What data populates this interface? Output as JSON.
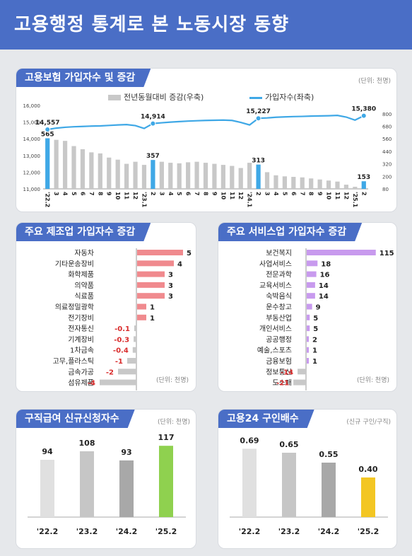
{
  "page": {
    "title": "고용행정 통계로 본 노동시장 동향"
  },
  "chart_data": [
    {
      "type": "bar+line",
      "title": "고용보험 가입자수 및 증감",
      "unit": "(단위: 천명)",
      "legend": {
        "bar": "전년동월대비 증감(우축)",
        "line": "가입자수(좌축)"
      },
      "categories": [
        "'22.2",
        "3",
        "4",
        "5",
        "6",
        "7",
        "8",
        "9",
        "10",
        "11",
        "12",
        "'23.1",
        "2",
        "3",
        "4",
        "5",
        "6",
        "7",
        "8",
        "9",
        "10",
        "11",
        "12",
        "'24.1",
        "2",
        "3",
        "4",
        "5",
        "6",
        "7",
        "8",
        "9",
        "10",
        "11",
        "12",
        "'25.1",
        "2"
      ],
      "left_axis": {
        "ylim": [
          11000,
          16000
        ],
        "ticks": [
          "11,000",
          "12,000",
          "13,000",
          "14,000",
          "15,000",
          "16,000"
        ]
      },
      "right_axis": {
        "ylim": [
          80,
          880
        ],
        "ticks": [
          "80",
          "200",
          "320",
          "440",
          "560",
          "680",
          "800"
        ]
      },
      "bar_values": [
        565,
        550,
        540,
        490,
        460,
        430,
        420,
        380,
        360,
        320,
        340,
        310,
        357,
        340,
        330,
        325,
        335,
        340,
        330,
        320,
        310,
        300,
        280,
        330,
        313,
        240,
        210,
        200,
        195,
        190,
        180,
        170,
        160,
        150,
        120,
        100,
        153
      ],
      "highlight_indices": [
        0,
        12,
        24,
        36
      ],
      "bar_labels": [
        {
          "i": 0,
          "text": "565"
        },
        {
          "i": 12,
          "text": "357"
        },
        {
          "i": 24,
          "text": "313"
        },
        {
          "i": 36,
          "text": "153"
        }
      ],
      "line_values": [
        14557,
        14640,
        14690,
        14720,
        14740,
        14760,
        14770,
        14800,
        14830,
        14850,
        14790,
        14620,
        14914,
        14960,
        15000,
        15030,
        15060,
        15080,
        15100,
        15110,
        15120,
        15100,
        14980,
        14830,
        15227,
        15250,
        15290,
        15310,
        15330,
        15340,
        15360,
        15370,
        15380,
        15400,
        15300,
        15120,
        15380
      ],
      "line_labels": [
        {
          "i": 0,
          "text": "14,557"
        },
        {
          "i": 12,
          "text": "14,914"
        },
        {
          "i": 24,
          "text": "15,227"
        },
        {
          "i": 36,
          "text": "15,380"
        }
      ]
    },
    {
      "type": "bar",
      "orientation": "horizontal",
      "title": "주요 제조업 가입자수 증감",
      "unit": "(단위: 천명)",
      "categories": [
        "자동차",
        "기타운송장비",
        "화학제품",
        "의약품",
        "식료품",
        "의료정밀광학",
        "전기장비",
        "전자통신",
        "기계장비",
        "1차금속",
        "고무,플라스틱",
        "금속가공",
        "섬유제품"
      ],
      "values": [
        5,
        4,
        3,
        3,
        3,
        1,
        1,
        -0.1,
        -0.3,
        -0.4,
        -1,
        -2,
        -4
      ],
      "labels": [
        "5",
        "4",
        "3",
        "3",
        "3",
        "1",
        "1",
        "-0.1",
        "-0.3",
        "-0.4",
        "-1",
        "-2",
        "-4"
      ]
    },
    {
      "type": "bar",
      "orientation": "horizontal",
      "title": "주요 서비스업 가입자수 증감",
      "unit": "(단위: 천명)",
      "categories": [
        "보건복지",
        "사업서비스",
        "전문과학",
        "교육서비스",
        "숙박음식",
        "운수창고",
        "부동산업",
        "개인서비스",
        "공공행정",
        "예술,스포츠",
        "금융보험",
        "정보통신",
        "도소매"
      ],
      "values": [
        115,
        18,
        16,
        14,
        14,
        9,
        5,
        5,
        2,
        1,
        1,
        -14,
        -21
      ],
      "labels": [
        "115",
        "18",
        "16",
        "14",
        "14",
        "9",
        "5",
        "5",
        "2",
        "1",
        "1",
        "-14",
        "-21"
      ]
    },
    {
      "type": "bar",
      "title": "구직급여 신규신청자수",
      "unit": "(단위: 천명)",
      "categories": [
        "'22.2",
        "'23.2",
        "'24.2",
        "'25.2"
      ],
      "values": [
        94,
        108,
        93,
        117
      ],
      "labels": [
        "94",
        "108",
        "93",
        "117"
      ],
      "colors": [
        "#e0e0e0",
        "#c6c6c6",
        "#a8a8a8",
        "#8fd14f"
      ],
      "ylim": [
        0,
        130
      ]
    },
    {
      "type": "bar",
      "title": "고용24 구인배수",
      "unit": "(신규 구인/구직)",
      "categories": [
        "'22.2",
        "'23.2",
        "'24.2",
        "'25.2"
      ],
      "values": [
        0.69,
        0.65,
        0.55,
        0.4
      ],
      "labels": [
        "0.69",
        "0.65",
        "0.55",
        "0.40"
      ],
      "colors": [
        "#e0e0e0",
        "#c6c6c6",
        "#a8a8a8",
        "#f3c623"
      ],
      "ylim": [
        0,
        0.8
      ]
    }
  ],
  "colors": {
    "header": "#4a6ec6",
    "accent_blue": "#3fa8e6",
    "bar_gray": "#c8c8c8",
    "mfg_pos": "#f08a8e",
    "svc_pos": "#c89aee",
    "neg_bar": "#c8c8c8",
    "neg_text": "#d92b2b"
  }
}
